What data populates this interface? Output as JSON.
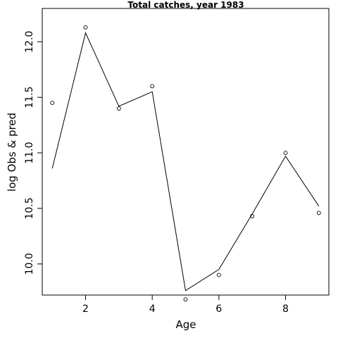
{
  "chart_data": {
    "type": "line",
    "title": "Total catches, year 1983",
    "xlabel": "Age",
    "ylabel": "log Obs & pred",
    "xlim": [
      0.7,
      9.3
    ],
    "ylim": [
      9.72,
      12.3
    ],
    "x_ticks": [
      2,
      4,
      6,
      8
    ],
    "y_ticks": [
      10.0,
      10.5,
      11.0,
      11.5,
      12.0
    ],
    "y_tick_labels": [
      "10.0",
      "10.5",
      "11.0",
      "11.5",
      "12.0"
    ],
    "grid": false,
    "legend": "none",
    "x": [
      1,
      2,
      3,
      4,
      5,
      6,
      7,
      8,
      9
    ],
    "series": [
      {
        "style": "points",
        "marker": "open-circle",
        "values": [
          11.45,
          12.13,
          11.4,
          11.6,
          9.68,
          9.9,
          10.43,
          11.0,
          10.46
        ]
      },
      {
        "style": "line",
        "values": [
          10.86,
          12.08,
          11.42,
          11.55,
          9.76,
          9.95,
          10.45,
          10.97,
          10.52
        ]
      }
    ]
  }
}
